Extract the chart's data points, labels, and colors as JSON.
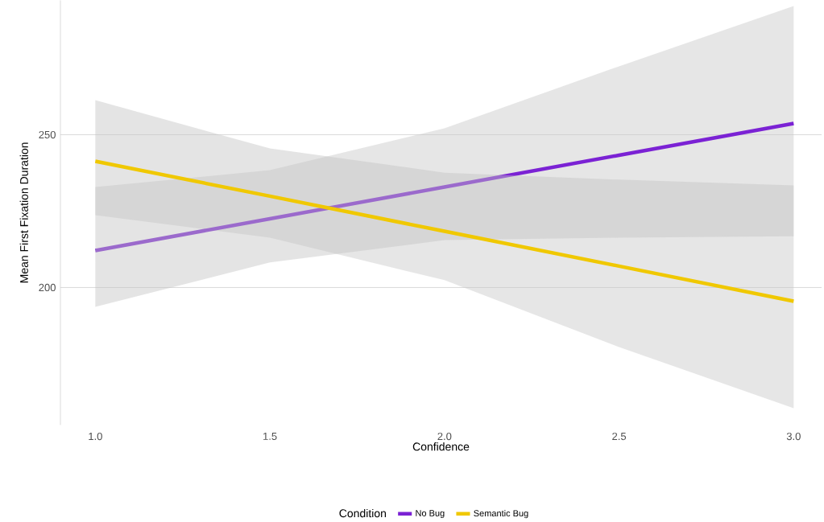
{
  "chart_data": {
    "type": "line",
    "xlabel": "Confidence",
    "ylabel": "Mean First Fixation Duration",
    "legend_title": "Condition",
    "x": [
      1.0,
      1.5,
      2.0,
      2.5,
      3.0
    ],
    "series": [
      {
        "name": "No Bug",
        "color": "#7b22d4",
        "values": [
          212.1,
          222.5,
          232.9,
          243.3,
          253.7
        ],
        "lower": [
          223.7,
          216.3,
          202.4,
          180.5,
          160.5
        ],
        "upper": [
          232.9,
          238.4,
          252.1,
          272.4,
          292.1
        ]
      },
      {
        "name": "Semantic Bug",
        "color": "#f0c800",
        "values": [
          241.3,
          229.9,
          218.4,
          207.0,
          195.5
        ],
        "lower": [
          193.7,
          208.2,
          215.5,
          216.3,
          216.8
        ],
        "upper": [
          261.3,
          245.5,
          237.6,
          235.3,
          233.4
        ]
      }
    ],
    "xlim": [
      0.9,
      3.08
    ],
    "ylim": [
      155,
      294
    ],
    "xticks": [
      {
        "value": 1.0,
        "label": "1.0"
      },
      {
        "value": 1.5,
        "label": "1.5"
      },
      {
        "value": 2.0,
        "label": "2.0"
      },
      {
        "value": 2.5,
        "label": "2.5"
      },
      {
        "value": 3.0,
        "label": "3.0"
      }
    ],
    "yticks": [
      200,
      250
    ],
    "grid": "y",
    "legend": "bottom",
    "marker": "none",
    "line_style": "solid"
  }
}
